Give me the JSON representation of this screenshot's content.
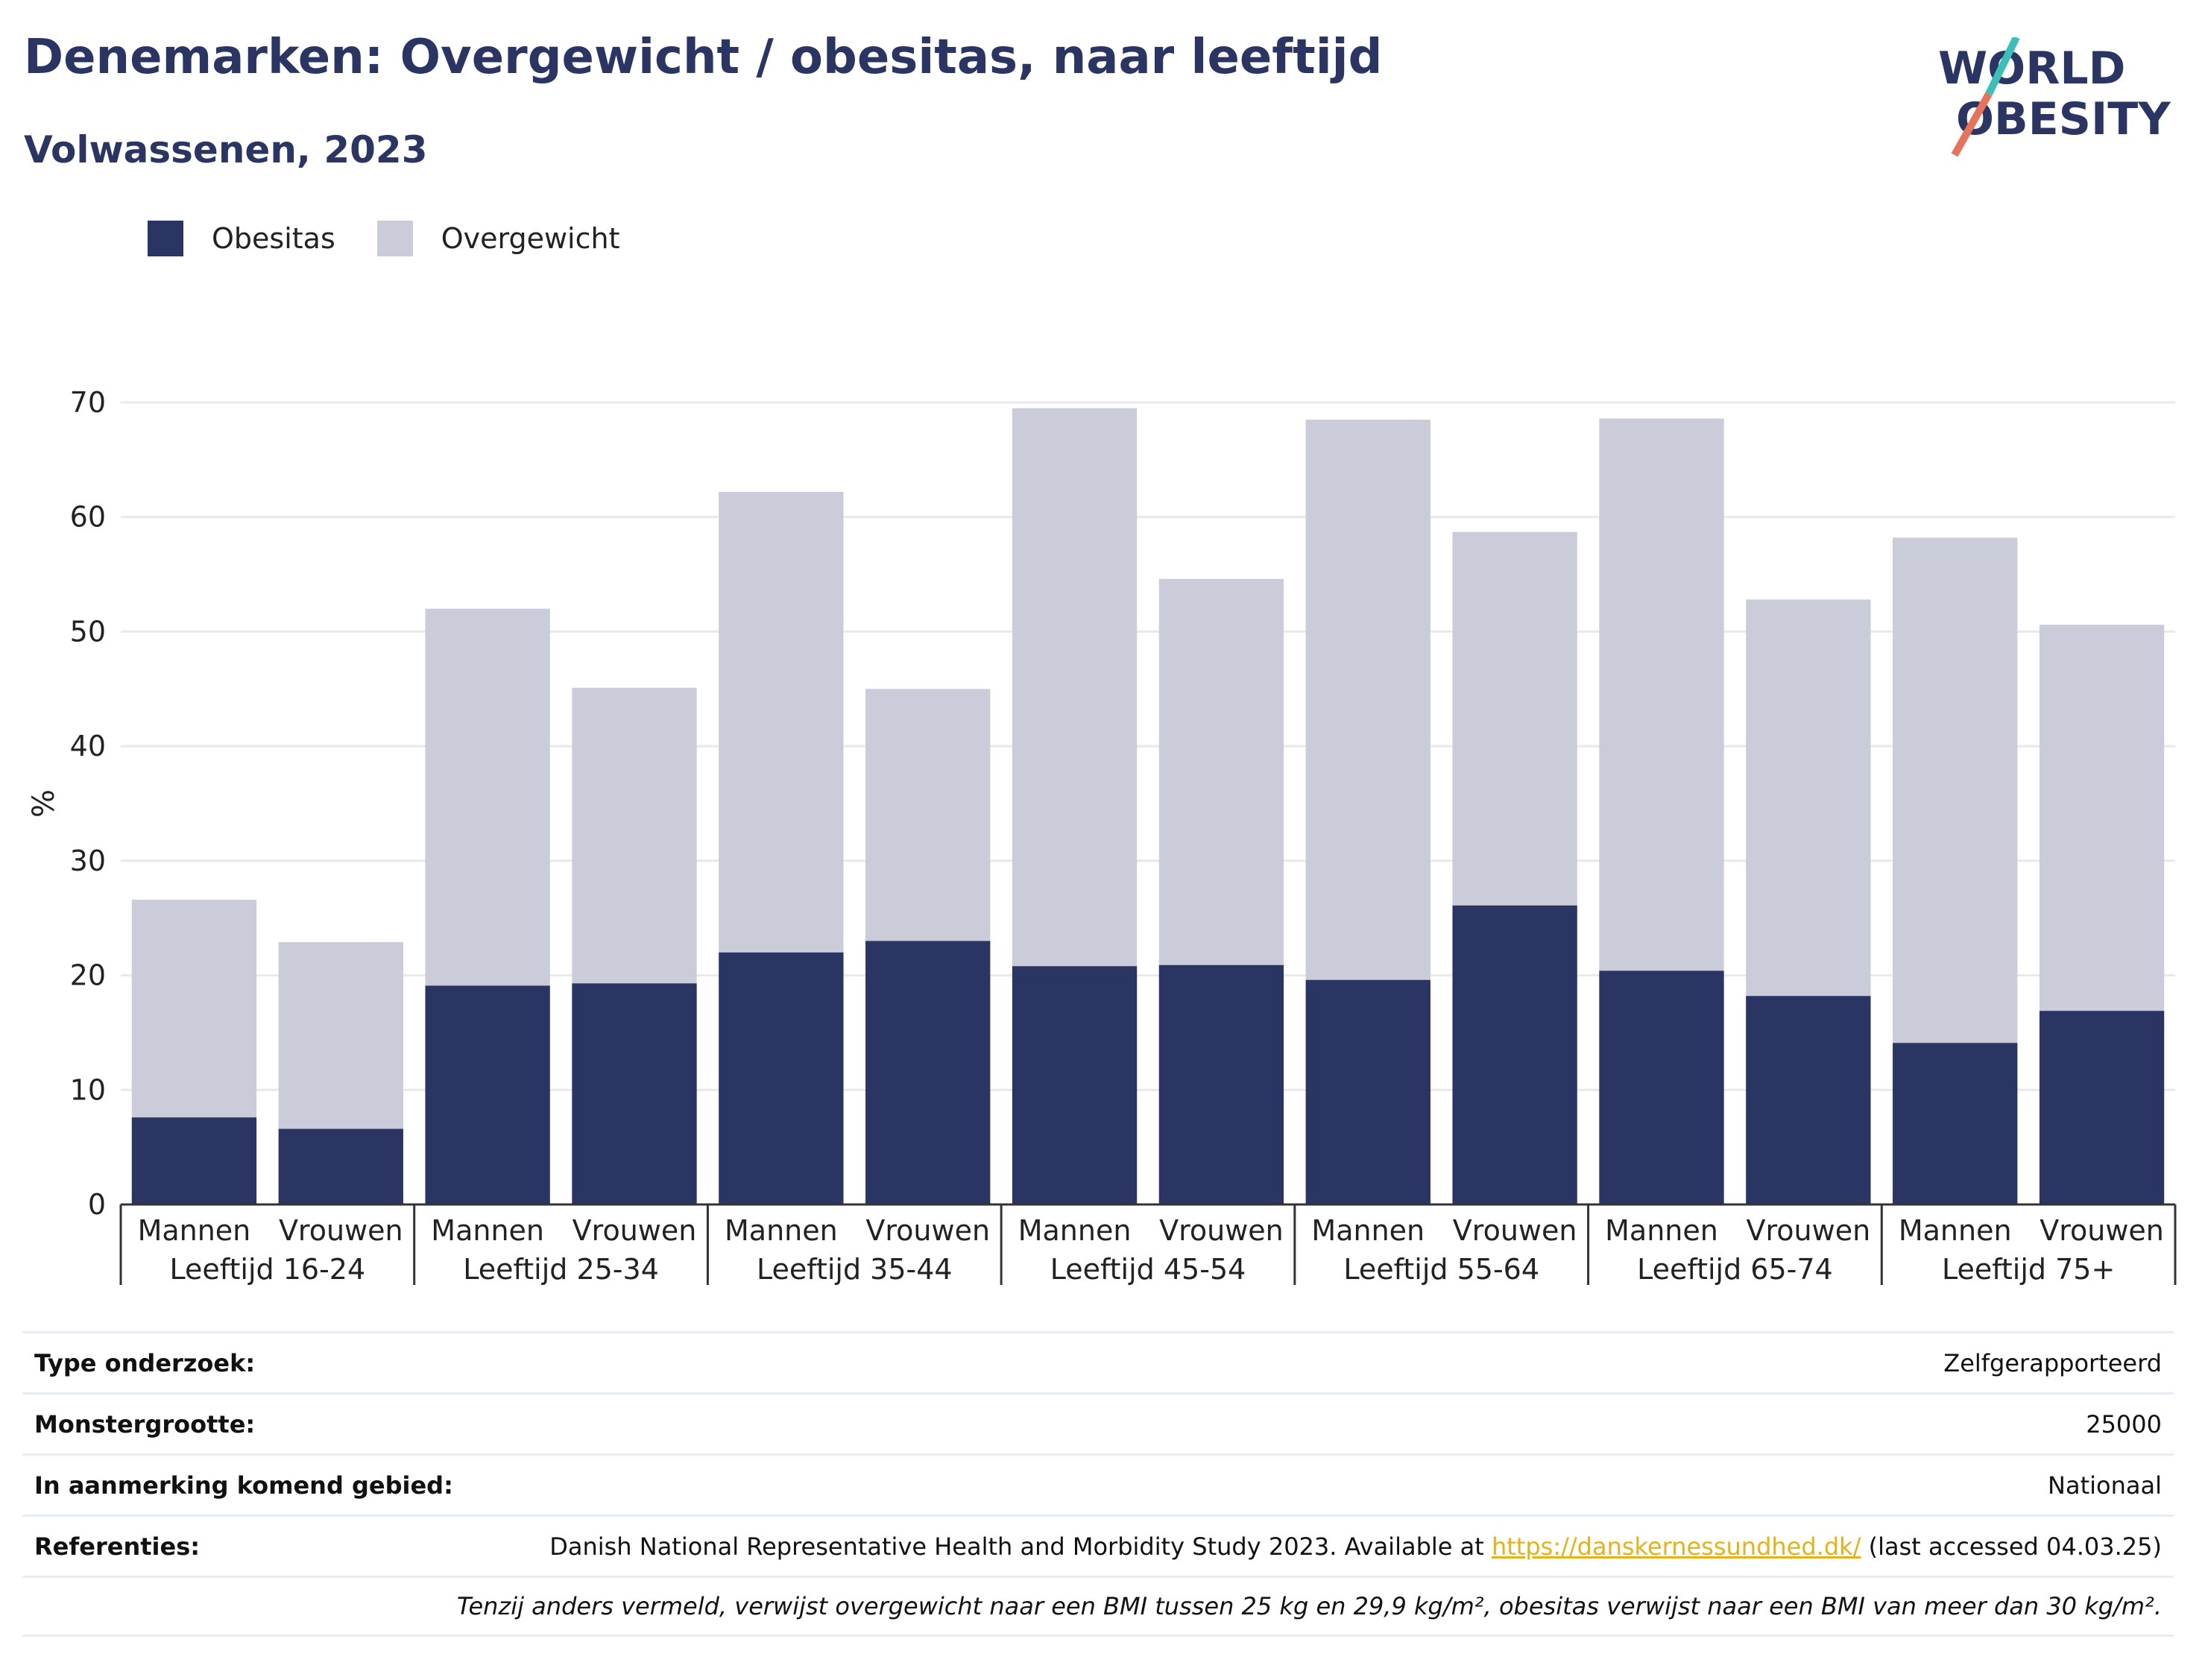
{
  "header": {
    "title": "Denemarken: Overgewicht / obesitas, naar leeftijd",
    "subtitle": "Volwassenen, 2023"
  },
  "logo": {
    "line1": "WORLD",
    "line2": "OBESITY"
  },
  "colors": {
    "obesitas": "#2a3563",
    "overgewicht": "#cacdd9",
    "accent_teal": "#3bbfb8",
    "accent_coral": "#e8735a",
    "title": "#2a3563"
  },
  "chart_data": {
    "type": "bar",
    "stacked": true,
    "ylabel": "%",
    "ylim": [
      0,
      70
    ],
    "yticks": [
      0,
      10,
      20,
      30,
      40,
      50,
      60,
      70
    ],
    "grid": true,
    "legend_position": "top-left",
    "groups": [
      "Leeftijd 16-24",
      "Leeftijd 25-34",
      "Leeftijd 35-44",
      "Leeftijd 45-54",
      "Leeftijd 55-64",
      "Leeftijd 65-74",
      "Leeftijd 75+"
    ],
    "subcategories": [
      "Mannen",
      "Vrouwen"
    ],
    "series": [
      {
        "name": "Obesitas",
        "values": [
          7.6,
          6.6,
          19.1,
          19.3,
          22.0,
          23.0,
          20.8,
          20.9,
          19.6,
          26.1,
          20.4,
          18.2,
          14.1,
          16.9
        ]
      },
      {
        "name": "Overgewicht",
        "values": [
          19.0,
          16.3,
          32.9,
          25.8,
          40.2,
          22.0,
          48.7,
          33.7,
          48.9,
          32.6,
          48.2,
          34.6,
          44.1,
          33.7
        ]
      }
    ],
    "totals": [
      26.6,
      22.9,
      52.0,
      45.1,
      62.2,
      45.0,
      69.5,
      54.6,
      68.5,
      58.7,
      68.6,
      52.8,
      58.2,
      50.6
    ]
  },
  "info": {
    "rows": [
      {
        "label": "Type onderzoek:",
        "value": "Zelfgerapporteerd"
      },
      {
        "label": "Monstergrootte:",
        "value": "25000"
      },
      {
        "label": "In aanmerking komend gebied:",
        "value": "Nationaal"
      }
    ],
    "references": {
      "label": "Referenties:",
      "text_before": "Danish National Representative Health and Morbidity Study 2023. Available at ",
      "link": "https://danskernessundhed.dk/",
      "text_after": " (last accessed 04.03.25)"
    },
    "note": "Tenzij anders vermeld, verwijst overgewicht naar een BMI tussen 25 kg en 29,9 kg/m², obesitas verwijst naar een BMI van meer dan 30 kg/m²."
  }
}
